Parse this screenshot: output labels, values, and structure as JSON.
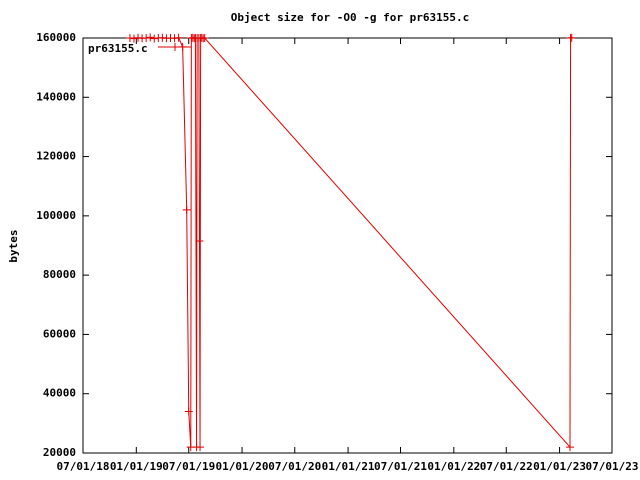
{
  "chart_data": {
    "type": "line",
    "title": "Object size for -O0 -g for pr63155.c",
    "y_label": "bytes",
    "x": [
      "2018-12-10",
      "2018-12-24",
      "2019-01-07",
      "2019-01-21",
      "2019-02-04",
      "2019-02-18",
      "2019-03-04",
      "2019-03-18",
      "2019-04-01",
      "2019-04-15",
      "2019-04-29",
      "2019-05-13",
      "2019-05-27",
      "2019-06-10",
      "2019-06-24",
      "2019-07-01",
      "2019-07-08",
      "2019-07-10",
      "2019-07-15",
      "2019-07-20",
      "2019-07-24",
      "2019-07-28",
      "2019-07-30",
      "2019-08-05",
      "2019-08-07",
      "2019-08-09",
      "2019-08-11",
      "2019-08-15",
      "2019-08-20",
      "2019-08-25",
      "2023-02-06",
      "2023-02-08",
      "2023-02-12"
    ],
    "series": [
      {
        "name": "pr63155.c",
        "color": "#e00000",
        "values": [
          160000,
          159800,
          160100,
          159900,
          160000,
          160200,
          159800,
          160000,
          160100,
          159900,
          160000,
          159900,
          160100,
          157000,
          102000,
          34000,
          22000,
          160000,
          160100,
          159900,
          160000,
          22000,
          160000,
          160000,
          91500,
          22000,
          160000,
          160100,
          159900,
          160000,
          22000,
          160000,
          160100
        ]
      }
    ],
    "xlim": [
      "2018-07-01",
      "2023-07-01"
    ],
    "xticks": [
      {
        "value": "2018-07-01",
        "label": "07/01/18"
      },
      {
        "value": "2019-01-01",
        "label": "01/01/19"
      },
      {
        "value": "2019-07-01",
        "label": "07/01/19"
      },
      {
        "value": "2020-01-01",
        "label": "01/01/20"
      },
      {
        "value": "2020-07-01",
        "label": "07/01/20"
      },
      {
        "value": "2021-01-01",
        "label": "01/01/21"
      },
      {
        "value": "2021-07-01",
        "label": "07/01/21"
      },
      {
        "value": "2022-01-01",
        "label": "01/01/22"
      },
      {
        "value": "2022-07-01",
        "label": "07/01/22"
      },
      {
        "value": "2023-01-01",
        "label": "01/01/23"
      },
      {
        "value": "2023-07-01",
        "label": "07/01/23"
      }
    ],
    "ylim": [
      20000,
      160000
    ],
    "yticks": [
      20000,
      40000,
      60000,
      80000,
      100000,
      120000,
      140000,
      160000
    ],
    "legend": "top-left",
    "grid": false
  }
}
